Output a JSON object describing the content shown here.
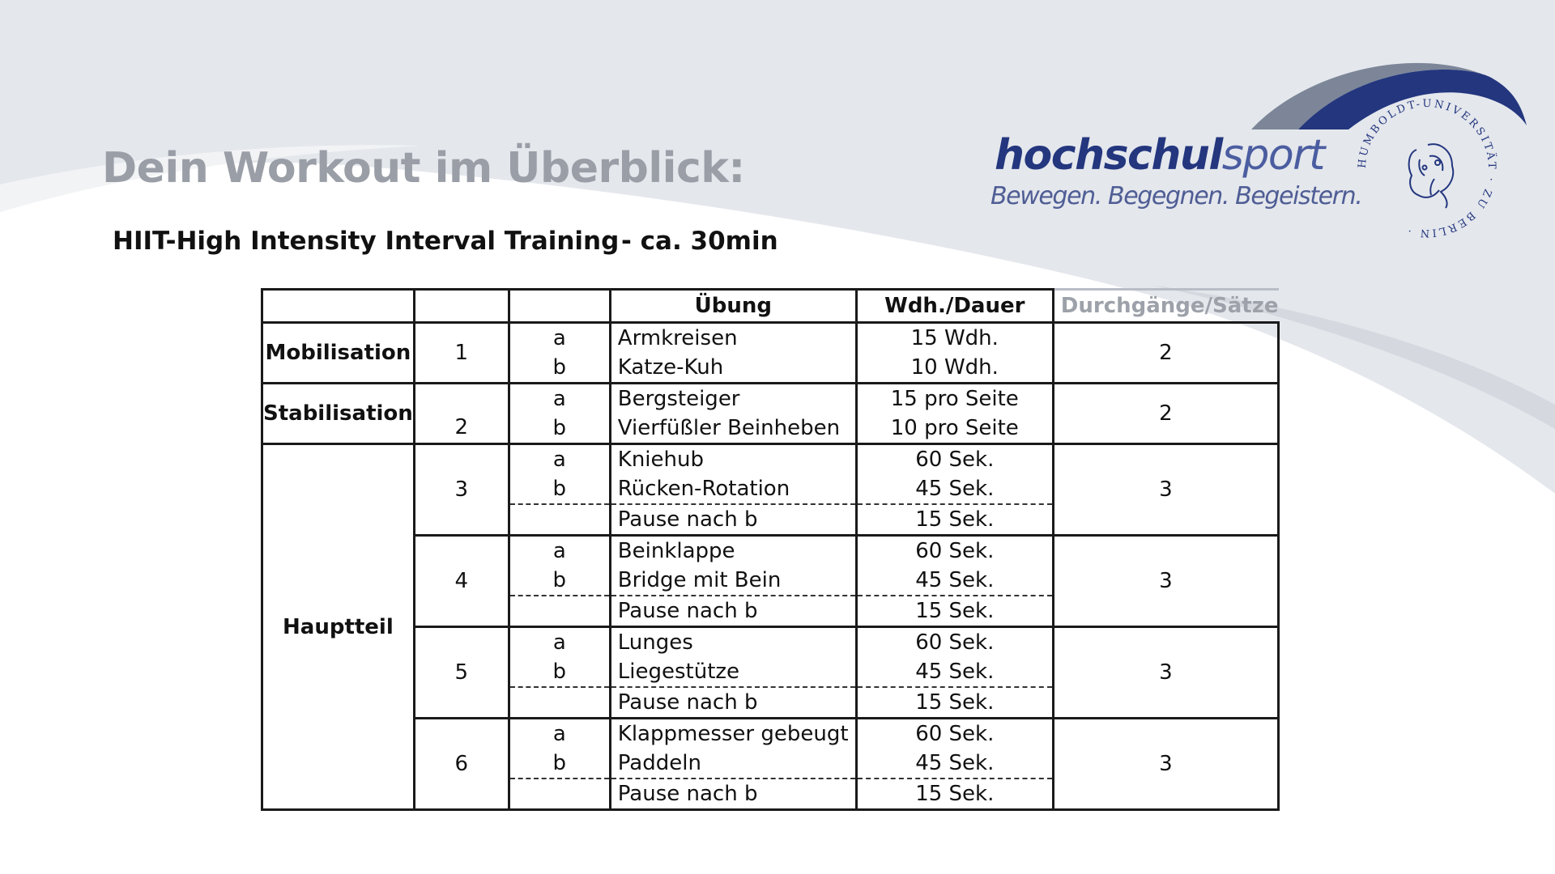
{
  "page": {
    "title": "Dein Workout im Überblick:",
    "subtitle": "HIIT-High Intensity Interval Training",
    "duration": "- ca. 30min"
  },
  "logo": {
    "word_bold": "hochschul",
    "word_light": "sport",
    "slogan": "Bewegen. Begegnen. Begeistern.",
    "seal_text": "HUMBOLDT-UNIVERSITÄT · ZU BERLIN ·",
    "colors": {
      "brand_dark": "#23367e",
      "brand_light": "#4b5da0",
      "arc_grey": "#7c8698"
    }
  },
  "table": {
    "headers": [
      "",
      "",
      "",
      "Übung",
      "Wdh./Dauer",
      "Durchgänge/Sätze"
    ],
    "sections": [
      {
        "category": "Mobilisation",
        "blocks": [
          {
            "number": "1",
            "sets": "2",
            "rows": [
              {
                "letter": "a",
                "exercise": "Armkreisen",
                "reps": "15 Wdh."
              },
              {
                "letter": "b",
                "exercise": "Katze-Kuh",
                "reps": "10 Wdh."
              }
            ]
          }
        ]
      },
      {
        "category": "Stabilisation",
        "blocks": [
          {
            "number": "2",
            "sets": "2",
            "rows": [
              {
                "letter": "a",
                "exercise": "Bergsteiger",
                "reps": "15 pro Seite"
              },
              {
                "letter": "b",
                "exercise": "Vierfüßler Beinheben",
                "reps": "10 pro Seite"
              }
            ]
          }
        ]
      },
      {
        "category": "Hauptteil",
        "blocks": [
          {
            "number": "3",
            "sets": "3",
            "rows": [
              {
                "letter": "a",
                "exercise": "Kniehub",
                "reps": "60 Sek."
              },
              {
                "letter": "b",
                "exercise": "Rücken-Rotation",
                "reps": "45 Sek."
              },
              {
                "letter": "",
                "exercise": "Pause nach b",
                "reps": "15 Sek."
              }
            ]
          },
          {
            "number": "4",
            "sets": "3",
            "rows": [
              {
                "letter": "a",
                "exercise": "Beinklappe",
                "reps": "60 Sek."
              },
              {
                "letter": "b",
                "exercise": "Bridge mit Bein",
                "reps": "45 Sek."
              },
              {
                "letter": "",
                "exercise": "Pause nach b",
                "reps": "15 Sek."
              }
            ]
          },
          {
            "number": "5",
            "sets": "3",
            "rows": [
              {
                "letter": "a",
                "exercise": "Lunges",
                "reps": "60 Sek."
              },
              {
                "letter": "b",
                "exercise": "Liegestütze",
                "reps": "45 Sek."
              },
              {
                "letter": "",
                "exercise": "Pause nach b",
                "reps": "15 Sek."
              }
            ]
          },
          {
            "number": "6",
            "sets": "3",
            "rows": [
              {
                "letter": "a",
                "exercise": "Klappmesser gebeugt",
                "reps": "60 Sek."
              },
              {
                "letter": "b",
                "exercise": "Paddeln",
                "reps": "45 Sek."
              },
              {
                "letter": "",
                "exercise": "Pause nach b",
                "reps": "15 Sek."
              }
            ]
          }
        ]
      }
    ]
  }
}
